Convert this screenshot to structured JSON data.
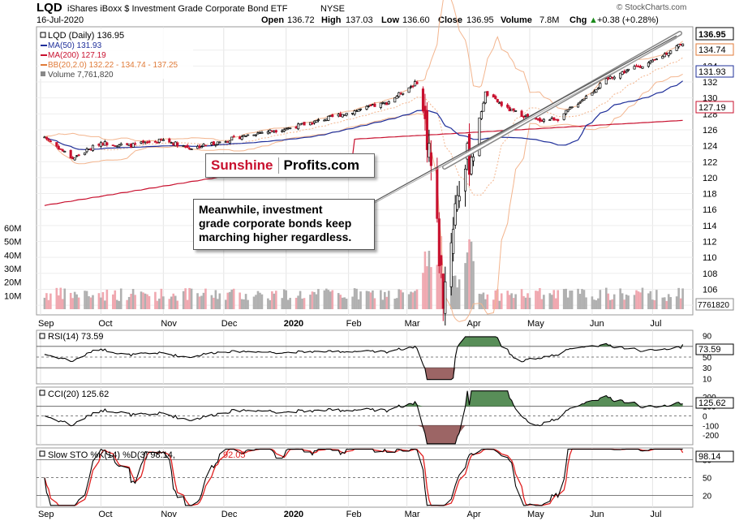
{
  "header": {
    "symbol": "LQD",
    "name": "iShares iBoxx $ Investment Grade Corporate Bond ETF",
    "exchange": "NYSE",
    "date": "16-Jul-2020",
    "open_label": "Open",
    "open": "136.72",
    "high_label": "High",
    "high": "137.03",
    "low_label": "Low",
    "low": "136.60",
    "close_label": "Close",
    "close": "136.95",
    "volume_label": "Volume",
    "volume": "7.8M",
    "chg_label": "Chg",
    "chg": "+0.38 (+0.28%)",
    "chg_arrow": "▲",
    "copyright": "© StockCharts.com"
  },
  "legend": {
    "lqd": "LQD (Daily) 136.95",
    "ma50": "MA(50) 131.93",
    "ma200": "MA(200) 127.19",
    "bb": "BB(20,2.0) 132.22 - 134.74 - 137.25",
    "vol": "Volume 7,761,820"
  },
  "price_axis": {
    "ticks": [
      "136",
      "134",
      "132",
      "130",
      "128",
      "126",
      "124",
      "122",
      "120",
      "118",
      "116",
      "114",
      "112",
      "110",
      "108",
      "106",
      "104"
    ],
    "tag_close": "136.95",
    "tag_bb_mid": "134.74",
    "tag_ma50": "131.93",
    "tag_ma200": "127.19",
    "tag_vol": "7761820"
  },
  "volume_axis": {
    "ticks": [
      "60M",
      "50M",
      "40M",
      "30M",
      "20M",
      "10M"
    ]
  },
  "months": [
    "Sep",
    "Oct",
    "Nov",
    "Dec",
    "2020",
    "Feb",
    "Mar",
    "Apr",
    "May",
    "Jun",
    "Jul"
  ],
  "annotation": {
    "line1": "Meanwhile, investment",
    "line2": "grade corporate bonds keep",
    "line3": "marching higher regardless."
  },
  "logo": {
    "part1": "Sunshine",
    "part2": "Profits.com"
  },
  "rsi": {
    "label": "RSI(14) 73.59",
    "ticks": [
      "90",
      "70",
      "50",
      "30",
      "10"
    ],
    "tag": "73.59"
  },
  "cci": {
    "label": "CCI(20) 125.62",
    "ticks": [
      "200",
      "100",
      "0",
      "-100",
      "-200"
    ],
    "tag": "125.62"
  },
  "sto": {
    "label_a": "Slow STO %K(14) %D(3) 98.14,",
    "label_b": "92.05",
    "ticks": [
      "80",
      "50",
      "20"
    ],
    "tag": "98.14"
  },
  "colors": {
    "ma50": "#1f2f9a",
    "ma200": "#c8102e",
    "bb": "#f0a070",
    "up": "#000000",
    "down": "#c8102e",
    "fill_pos": "#3b7a3b",
    "fill_neg": "#8b4a4a",
    "sto_d": "#e02020"
  },
  "chart_data": {
    "type": "candlestick",
    "title": "LQD iShares iBoxx $ Investment Grade Corporate Bond ETF",
    "x_labels": [
      "Sep",
      "Oct",
      "Nov",
      "Dec",
      "2020",
      "Feb",
      "Mar",
      "Apr",
      "May",
      "Jun",
      "Jul"
    ],
    "ylim": [
      103,
      138
    ],
    "price_points": [
      [
        "2019-09-03",
        125.1
      ],
      [
        "2019-09-17",
        122.4
      ],
      [
        "2019-10-01",
        124.4
      ],
      [
        "2019-10-15",
        124.0
      ],
      [
        "2019-11-01",
        124.7
      ],
      [
        "2019-11-15",
        123.7
      ],
      [
        "2019-12-01",
        124.6
      ],
      [
        "2019-12-15",
        125.5
      ],
      [
        "2020-01-02",
        126.2
      ],
      [
        "2020-01-15",
        127.0
      ],
      [
        "2020-02-03",
        128.3
      ],
      [
        "2020-02-20",
        129.4
      ],
      [
        "2020-03-06",
        132.0
      ],
      [
        "2020-03-12",
        124.0
      ],
      [
        "2020-03-19",
        105.2
      ],
      [
        "2020-03-26",
        118.4
      ],
      [
        "2020-04-03",
        124.0
      ],
      [
        "2020-04-09",
        130.6
      ],
      [
        "2020-04-20",
        128.6
      ],
      [
        "2020-05-04",
        127.2
      ],
      [
        "2020-05-15",
        127.4
      ],
      [
        "2020-05-28",
        130.0
      ],
      [
        "2020-06-10",
        132.6
      ],
      [
        "2020-06-22",
        133.8
      ],
      [
        "2020-07-01",
        134.5
      ],
      [
        "2020-07-16",
        136.95
      ]
    ],
    "ma50_last": 131.93,
    "ma200_last": 127.19,
    "bb_last": {
      "lower": 132.22,
      "mid": 134.74,
      "upper": 137.25
    },
    "volume_last": 7761820,
    "rsi_last": 73.59,
    "cci_last": 125.62,
    "sto_last": {
      "k": 98.14,
      "d": 92.05
    }
  }
}
